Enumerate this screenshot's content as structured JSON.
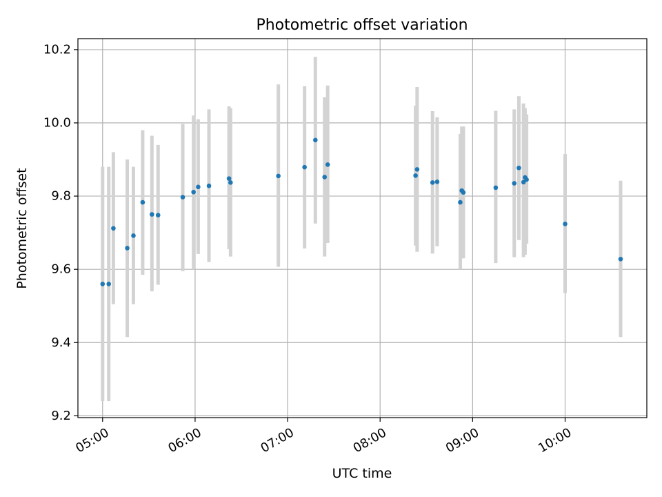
{
  "chart_data": {
    "type": "scatter",
    "title": "Photometric offset variation",
    "xlabel": "UTC time",
    "ylabel": "Photometric offset",
    "xlim": [
      "04:44",
      "10:53"
    ],
    "ylim": [
      9.195,
      10.23
    ],
    "grid": true,
    "x_ticks": [
      "05:00",
      "06:00",
      "07:00",
      "08:00",
      "09:00",
      "10:00"
    ],
    "y_ticks": [
      "9.2",
      "9.4",
      "9.6",
      "9.8",
      "10.0",
      "10.2"
    ],
    "colors": {
      "point": "#1f77b4",
      "errorbar": "#d3d3d3",
      "grid": "#b0b0b0"
    },
    "series": [
      {
        "points": [
          {
            "x": "05:00",
            "y": 9.56,
            "ylow": 9.24,
            "yhigh": 9.88
          },
          {
            "x": "05:04",
            "y": 9.56,
            "ylow": 9.24,
            "yhigh": 9.88
          },
          {
            "x": "05:07",
            "y": 9.712,
            "ylow": 9.505,
            "yhigh": 9.92
          },
          {
            "x": "05:16",
            "y": 9.658,
            "ylow": 9.415,
            "yhigh": 9.9
          },
          {
            "x": "05:20",
            "y": 9.692,
            "ylow": 9.505,
            "yhigh": 9.88
          },
          {
            "x": "05:26",
            "y": 9.783,
            "ylow": 9.585,
            "yhigh": 9.98
          },
          {
            "x": "05:32",
            "y": 9.75,
            "ylow": 9.54,
            "yhigh": 9.965
          },
          {
            "x": "05:36",
            "y": 9.748,
            "ylow": 9.558,
            "yhigh": 9.94
          },
          {
            "x": "05:52",
            "y": 9.797,
            "ylow": 9.595,
            "yhigh": 9.997
          },
          {
            "x": "05:59",
            "y": 9.811,
            "ylow": 9.6,
            "yhigh": 10.02
          },
          {
            "x": "06:02",
            "y": 9.825,
            "ylow": 9.642,
            "yhigh": 10.01
          },
          {
            "x": "06:09",
            "y": 9.828,
            "ylow": 9.62,
            "yhigh": 10.037
          },
          {
            "x": "06:22",
            "y": 9.848,
            "ylow": 9.655,
            "yhigh": 10.045
          },
          {
            "x": "06:23",
            "y": 9.837,
            "ylow": 9.635,
            "yhigh": 10.04
          },
          {
            "x": "06:54",
            "y": 9.855,
            "ylow": 9.607,
            "yhigh": 10.105
          },
          {
            "x": "07:11",
            "y": 9.879,
            "ylow": 9.657,
            "yhigh": 10.1
          },
          {
            "x": "07:18",
            "y": 9.953,
            "ylow": 9.725,
            "yhigh": 10.18
          },
          {
            "x": "07:24",
            "y": 9.852,
            "ylow": 9.635,
            "yhigh": 10.07
          },
          {
            "x": "07:26",
            "y": 9.886,
            "ylow": 9.672,
            "yhigh": 10.102
          },
          {
            "x": "08:23",
            "y": 9.856,
            "ylow": 9.665,
            "yhigh": 10.047
          },
          {
            "x": "08:24",
            "y": 9.873,
            "ylow": 9.648,
            "yhigh": 10.098
          },
          {
            "x": "08:34",
            "y": 9.837,
            "ylow": 9.643,
            "yhigh": 10.032
          },
          {
            "x": "08:37",
            "y": 9.839,
            "ylow": 9.663,
            "yhigh": 10.015
          },
          {
            "x": "08:52",
            "y": 9.783,
            "ylow": 9.6,
            "yhigh": 9.97
          },
          {
            "x": "08:53",
            "y": 9.815,
            "ylow": 9.63,
            "yhigh": 9.99
          },
          {
            "x": "08:54",
            "y": 9.81,
            "ylow": 9.63,
            "yhigh": 9.99
          },
          {
            "x": "09:15",
            "y": 9.823,
            "ylow": 9.617,
            "yhigh": 10.033
          },
          {
            "x": "09:27",
            "y": 9.835,
            "ylow": 9.633,
            "yhigh": 10.037
          },
          {
            "x": "09:30",
            "y": 9.877,
            "ylow": 9.68,
            "yhigh": 10.073
          },
          {
            "x": "09:33",
            "y": 9.838,
            "ylow": 9.633,
            "yhigh": 10.053
          },
          {
            "x": "09:34",
            "y": 9.851,
            "ylow": 9.64,
            "yhigh": 10.04
          },
          {
            "x": "09:35",
            "y": 9.845,
            "ylow": 9.67,
            "yhigh": 10.023
          },
          {
            "x": "10:00",
            "y": 9.724,
            "ylow": 9.535,
            "yhigh": 9.915
          },
          {
            "x": "10:36",
            "y": 9.628,
            "ylow": 9.415,
            "yhigh": 9.842
          }
        ]
      }
    ]
  }
}
